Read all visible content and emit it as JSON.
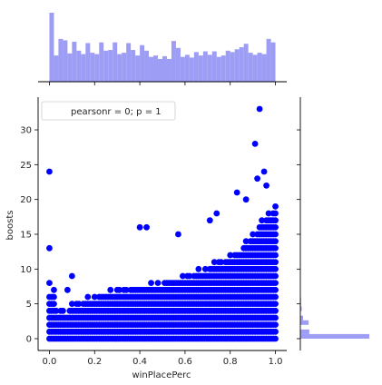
{
  "chart_data": {
    "type": "scatter",
    "kind": "jointplot",
    "xlabel": "winPlacePerc",
    "ylabel": "boosts",
    "xlim": [
      -0.05,
      1.05
    ],
    "ylim": [
      -1.7,
      34.7
    ],
    "x_ticks": [
      "0.0",
      "0.2",
      "0.4",
      "0.6",
      "0.8",
      "1.0"
    ],
    "y_ticks": [
      "0",
      "5",
      "10",
      "15",
      "20",
      "25",
      "30"
    ],
    "annotation": "pearsonr = 0; p = 1",
    "legend_position": "top-left",
    "grid": false,
    "colors": {
      "points": "#0000ff",
      "hist": "#9d9df5"
    },
    "marginal_x": {
      "bin_edges_start": 0.0,
      "bin_width": 0.02,
      "counts": [
        100,
        38,
        62,
        60,
        41,
        58,
        45,
        40,
        56,
        42,
        40,
        57,
        45,
        46,
        57,
        40,
        42,
        56,
        46,
        38,
        53,
        45,
        36,
        38,
        33,
        37,
        33,
        59,
        49,
        36,
        39,
        35,
        43,
        38,
        44,
        39,
        44,
        36,
        38,
        45,
        43,
        47,
        50,
        55,
        42,
        39,
        42,
        40,
        62,
        57
      ]
    },
    "marginal_y": {
      "bin_edges_start": 0,
      "bin_width": 0.66,
      "counts": [
        100,
        13,
        0,
        12,
        4,
        0,
        2,
        1,
        1,
        0,
        0,
        0,
        0,
        0,
        0,
        0,
        0,
        0,
        0,
        0,
        0,
        0,
        0,
        0,
        0,
        0,
        0,
        0,
        0,
        0,
        0,
        0,
        0,
        0,
        0,
        0,
        0,
        0,
        0,
        0,
        0,
        0,
        0,
        0,
        0,
        0,
        0,
        0,
        0,
        0
      ]
    },
    "outliers": [
      {
        "x": 0.0,
        "y": 24
      },
      {
        "x": 0.0,
        "y": 13
      },
      {
        "x": 0.4,
        "y": 16
      },
      {
        "x": 0.43,
        "y": 16
      },
      {
        "x": 0.57,
        "y": 15
      },
      {
        "x": 0.71,
        "y": 17
      },
      {
        "x": 0.74,
        "y": 18
      },
      {
        "x": 0.83,
        "y": 21
      },
      {
        "x": 0.87,
        "y": 20
      },
      {
        "x": 0.91,
        "y": 28
      },
      {
        "x": 0.92,
        "y": 23
      },
      {
        "x": 0.93,
        "y": 33
      },
      {
        "x": 0.95,
        "y": 24
      },
      {
        "x": 0.96,
        "y": 22
      },
      {
        "x": 0.0,
        "y": 8
      },
      {
        "x": 0.1,
        "y": 9
      },
      {
        "x": 0.08,
        "y": 7
      }
    ]
  }
}
